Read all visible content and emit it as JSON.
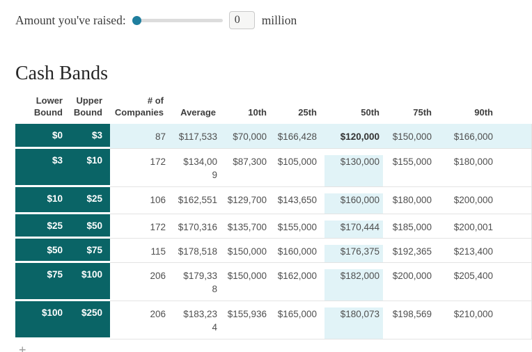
{
  "slider": {
    "label": "Amount you've raised:",
    "value": "0",
    "unit": "million"
  },
  "title": "Cash Bands",
  "table": {
    "headers": [
      "Lower Bound",
      "Upper Bound",
      "# of Companies",
      "Average",
      "10th",
      "25th",
      "50th",
      "75th",
      "90th"
    ],
    "rows": [
      {
        "lower_bound": "$0",
        "upper_bound": "$3",
        "num_companies": "87",
        "average": "$117,533",
        "p10": "$70,000",
        "p25": "$166,428",
        "p50": "$120,000",
        "p75": "$150,000",
        "p90": "$166,000",
        "row_highlighted": true,
        "p50_bold": true
      },
      {
        "lower_bound": "$3",
        "upper_bound": "$10",
        "num_companies": "172",
        "average": "$134,009",
        "average_display": "$134,00\n9",
        "p10": "$87,300",
        "p25": "$105,000",
        "p50": "$130,000",
        "p75": "$155,000",
        "p90": "$180,000"
      },
      {
        "lower_bound": "$10",
        "upper_bound": "$25",
        "num_companies": "106",
        "average": "$162,551",
        "p10": "$129,700",
        "p25": "$143,650",
        "p50": "$160,000",
        "p75": "$180,000",
        "p90": "$200,000"
      },
      {
        "lower_bound": "$25",
        "upper_bound": "$50",
        "num_companies": "172",
        "average": "$170,316",
        "p10": "$135,700",
        "p25": "$155,000",
        "p50": "$170,444",
        "p75": "$185,000",
        "p90": "$200,001"
      },
      {
        "lower_bound": "$50",
        "upper_bound": "$75",
        "num_companies": "115",
        "average": "$178,518",
        "p10": "$150,000",
        "p25": "$160,000",
        "p50": "$176,375",
        "p75": "$192,365",
        "p90": "$213,400"
      },
      {
        "lower_bound": "$75",
        "upper_bound": "$100",
        "num_companies": "206",
        "average": "$179,338",
        "average_display": "$179,33\n8",
        "p10": "$150,000",
        "p25": "$162,000",
        "p50": "$182,000",
        "p75": "$200,000",
        "p90": "$205,400"
      },
      {
        "lower_bound": "$100",
        "upper_bound": "$250",
        "num_companies": "206",
        "average": "$183,234",
        "average_display": "$183,23\n4",
        "p10": "$155,936",
        "p25": "$165,000",
        "p50": "$180,073",
        "p75": "$198,569",
        "p90": "$210,000"
      }
    ],
    "colors": {
      "band_fill": "#0A6466",
      "highlight_fill": "#E1F3F7",
      "slider_handle": "#1F7E9E"
    }
  },
  "partial_plus_icon": "+"
}
